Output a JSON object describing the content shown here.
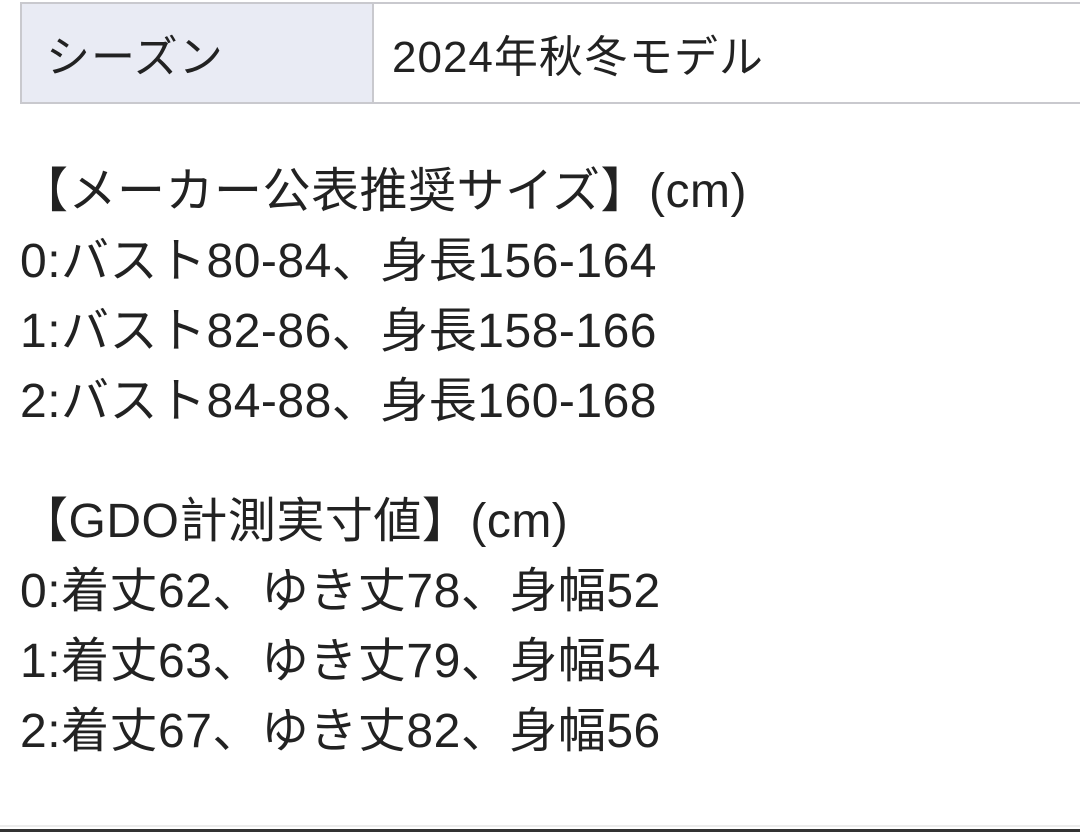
{
  "spec_table": {
    "season_row": {
      "label": "シーズン",
      "value": "2024年秋冬モデル"
    }
  },
  "maker_sizes": {
    "heading": "【メーカー公表推奨サイズ】(cm)",
    "lines": [
      "0:バスト80-84、身長156-164",
      "1:バスト82-86、身長158-166",
      "2:バスト84-88、身長160-168"
    ]
  },
  "gdo_sizes": {
    "heading": "【GDO計測実寸値】(cm)",
    "lines": [
      "0:着丈62、ゆき丈78、身幅52",
      "1:着丈63、ゆき丈79、身幅54",
      "2:着丈67、ゆき丈82、身幅56"
    ]
  },
  "colors": {
    "label_cell_bg": "#e9ebf4",
    "table_border": "#c9c9ce",
    "text": "#222222",
    "bottom_bar": "#333333",
    "bottom_divider": "#ececec"
  }
}
